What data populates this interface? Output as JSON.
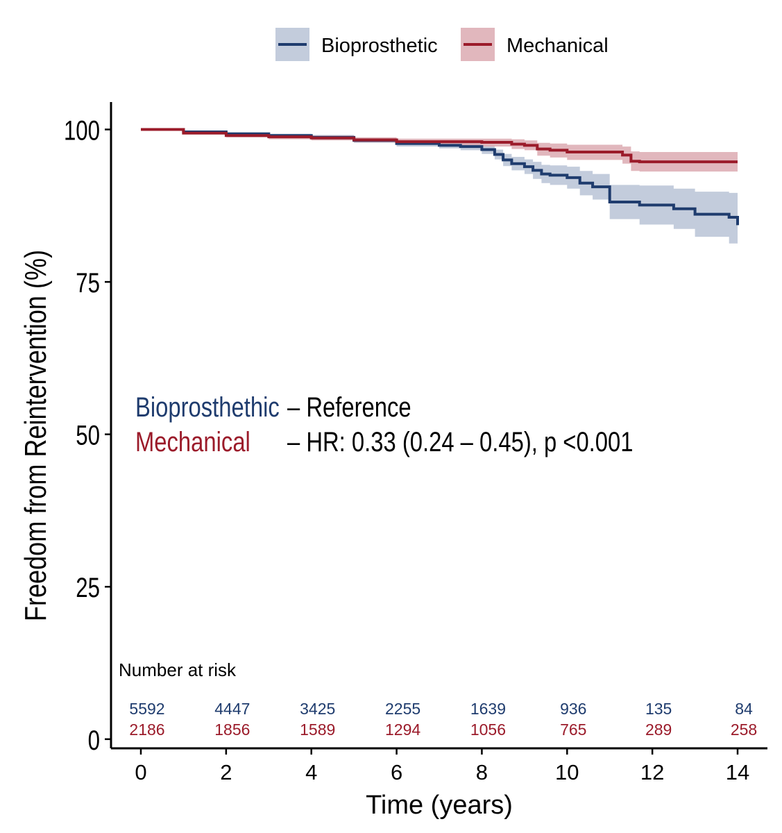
{
  "chart_data": {
    "type": "line",
    "subtype": "kaplan-meier",
    "xlabel": "Time (years)",
    "ylabel": "Freedom from Reintervention (%)",
    "xlim": [
      -0.7,
      14.7
    ],
    "ylim": [
      -1.5,
      104.5
    ],
    "x_ticks": [
      0,
      2,
      4,
      6,
      8,
      10,
      12,
      14
    ],
    "y_ticks": [
      0,
      25,
      50,
      75,
      100
    ],
    "legend_position": "top",
    "series": [
      {
        "name": "Bioprosthetic",
        "color": "#1f3c6e",
        "band_color": "#b8c3d6",
        "points": [
          [
            0,
            100
          ],
          [
            1,
            99.6
          ],
          [
            2,
            99.3
          ],
          [
            3,
            99
          ],
          [
            4,
            98.7
          ],
          [
            5,
            98.2
          ],
          [
            6,
            97.7
          ],
          [
            7,
            97.4
          ],
          [
            7.5,
            97.2
          ],
          [
            8,
            96.7
          ],
          [
            8.3,
            95.9
          ],
          [
            8.5,
            95
          ],
          [
            8.7,
            94.4
          ],
          [
            9,
            93.9
          ],
          [
            9.2,
            93.3
          ],
          [
            9.4,
            92.7
          ],
          [
            9.6,
            92.5
          ],
          [
            10,
            92.1
          ],
          [
            10.3,
            91.2
          ],
          [
            10.6,
            90.6
          ],
          [
            11,
            88.1
          ],
          [
            11.4,
            88.1
          ],
          [
            11.7,
            87.6
          ],
          [
            12.3,
            87.6
          ],
          [
            12.5,
            87
          ],
          [
            13,
            86.1
          ],
          [
            13.8,
            85.6
          ],
          [
            14,
            84.3
          ]
        ],
        "lower": [
          [
            0,
            100
          ],
          [
            1,
            99.5
          ],
          [
            2,
            99.1
          ],
          [
            3,
            98.7
          ],
          [
            4,
            98.3
          ],
          [
            5,
            97.8
          ],
          [
            6,
            97.2
          ],
          [
            7,
            96.9
          ],
          [
            7.5,
            96.6
          ],
          [
            8,
            96
          ],
          [
            8.3,
            95.1
          ],
          [
            8.5,
            94
          ],
          [
            8.7,
            93.3
          ],
          [
            9,
            92.7
          ],
          [
            9.2,
            91.9
          ],
          [
            9.4,
            91.2
          ],
          [
            9.6,
            90.9
          ],
          [
            10,
            90.3
          ],
          [
            10.3,
            89.2
          ],
          [
            10.6,
            88.5
          ],
          [
            11,
            85.3
          ],
          [
            11.4,
            85.3
          ],
          [
            11.7,
            84.4
          ],
          [
            12.3,
            84.4
          ],
          [
            12.5,
            83.7
          ],
          [
            13,
            82.4
          ],
          [
            13.8,
            81.3
          ],
          [
            14,
            79.8
          ]
        ],
        "upper": [
          [
            0,
            100
          ],
          [
            1,
            99.7
          ],
          [
            2,
            99.5
          ],
          [
            3,
            99.3
          ],
          [
            4,
            99.1
          ],
          [
            5,
            98.6
          ],
          [
            6,
            98.2
          ],
          [
            7,
            97.9
          ],
          [
            7.5,
            97.8
          ],
          [
            8,
            97.4
          ],
          [
            8.3,
            96.7
          ],
          [
            8.5,
            96
          ],
          [
            8.7,
            95.5
          ],
          [
            9,
            95.1
          ],
          [
            9.2,
            94.7
          ],
          [
            9.4,
            94.2
          ],
          [
            9.6,
            94.1
          ],
          [
            10,
            93.9
          ],
          [
            10.3,
            93.2
          ],
          [
            10.6,
            92.7
          ],
          [
            11,
            90.9
          ],
          [
            11.4,
            90.9
          ],
          [
            11.7,
            90.8
          ],
          [
            12.3,
            90.8
          ],
          [
            12.5,
            90.3
          ],
          [
            13,
            89.8
          ],
          [
            13.8,
            89.6
          ],
          [
            14,
            88.8
          ]
        ]
      },
      {
        "name": "Mechanical",
        "color": "#9b1b2a",
        "band_color": "#dcaab1",
        "points": [
          [
            0,
            100
          ],
          [
            1,
            99.4
          ],
          [
            2,
            99
          ],
          [
            3,
            98.8
          ],
          [
            4,
            98.6
          ],
          [
            5,
            98.3
          ],
          [
            6,
            98
          ],
          [
            7,
            98
          ],
          [
            8,
            97.9
          ],
          [
            8.7,
            97.6
          ],
          [
            9,
            97.4
          ],
          [
            9.3,
            96.8
          ],
          [
            9.6,
            96.6
          ],
          [
            10,
            96.3
          ],
          [
            10.7,
            96.3
          ],
          [
            11.3,
            95.8
          ],
          [
            11.5,
            94.8
          ],
          [
            11.7,
            94.7
          ],
          [
            14,
            94.7
          ]
        ],
        "lower": [
          [
            0,
            100
          ],
          [
            1,
            99.2
          ],
          [
            2,
            98.7
          ],
          [
            3,
            98.4
          ],
          [
            4,
            98.2
          ],
          [
            5,
            97.9
          ],
          [
            6,
            97.5
          ],
          [
            7,
            97.4
          ],
          [
            8,
            97.2
          ],
          [
            8.7,
            96.8
          ],
          [
            9,
            96.6
          ],
          [
            9.3,
            95.7
          ],
          [
            9.6,
            95.4
          ],
          [
            10,
            95
          ],
          [
            10.7,
            95
          ],
          [
            11.3,
            94.4
          ],
          [
            11.5,
            93.2
          ],
          [
            11.7,
            93.1
          ],
          [
            14,
            93.1
          ]
        ],
        "upper": [
          [
            0,
            100
          ],
          [
            1,
            99.6
          ],
          [
            2,
            99.3
          ],
          [
            3,
            99.2
          ],
          [
            4,
            99
          ],
          [
            5,
            98.7
          ],
          [
            6,
            98.5
          ],
          [
            7,
            98.5
          ],
          [
            8,
            98.5
          ],
          [
            8.7,
            98.4
          ],
          [
            9,
            98.2
          ],
          [
            9.3,
            97.8
          ],
          [
            9.6,
            97.7
          ],
          [
            10,
            97.5
          ],
          [
            10.7,
            97.5
          ],
          [
            11.3,
            97.2
          ],
          [
            11.5,
            96.4
          ],
          [
            11.7,
            96.3
          ],
          [
            14,
            96.3
          ]
        ]
      }
    ],
    "annotations": {
      "bio_label": "Bioprosthethic",
      "bio_text": "– Reference",
      "mech_label": "Mechanical",
      "mech_text": "– HR: 0.33 (0.24 – 0.45), p <0.001"
    },
    "risk_table": {
      "title": "Number at risk",
      "times": [
        0,
        2,
        4,
        6,
        8,
        10,
        12,
        14
      ],
      "rows": [
        {
          "series": "Bioprosthetic",
          "values": [
            "5592",
            "4447",
            "3425",
            "2255",
            "1639",
            "936",
            "135",
            "84"
          ]
        },
        {
          "series": "Mechanical",
          "values": [
            "2186",
            "1856",
            "1589",
            "1294",
            "1056",
            "765",
            "289",
            "258"
          ]
        }
      ]
    }
  }
}
